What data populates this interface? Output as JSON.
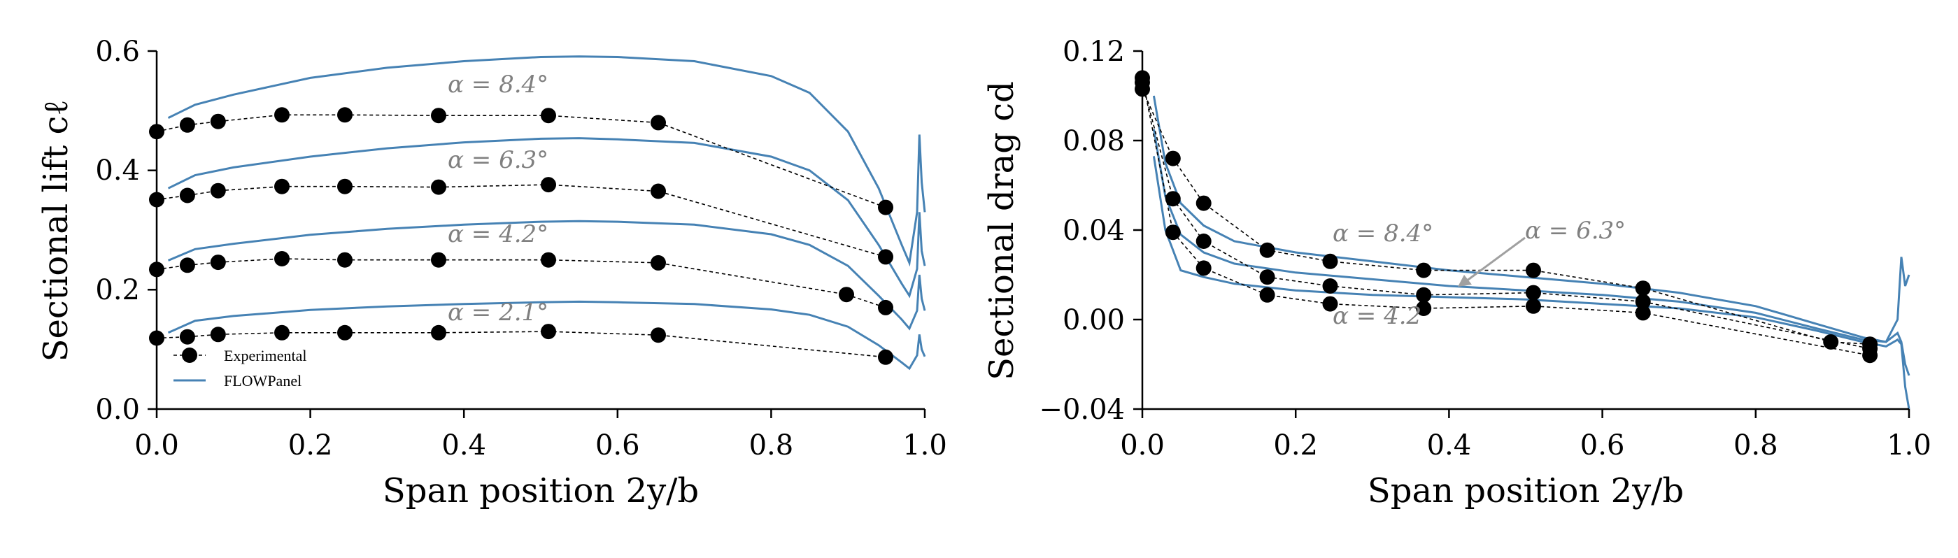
{
  "colors": {
    "experimental": "#000000",
    "flowpanel": "#4682b4",
    "annotation": "#808080",
    "arrow": "#a0a0a0"
  },
  "legend": {
    "experimental": "Experimental",
    "flowpanel": "FLOWPanel"
  },
  "chart_data": [
    {
      "type": "line",
      "xlabel": "Span position 2y/b",
      "ylabel": "Sectional lift cℓ",
      "xlim": [
        0.0,
        1.0
      ],
      "ylim": [
        0.0,
        0.6
      ],
      "xticks": [
        "0.0",
        "0.2",
        "0.4",
        "0.6",
        "0.8",
        "1.0"
      ],
      "yticks": [
        "0.0",
        "0.2",
        "0.4",
        "0.6"
      ],
      "grid": false,
      "legend_position": "lower-left",
      "annotations": [
        "α = 8.4°",
        "α = 6.3°",
        "α = 4.2°",
        "α = 2.1°"
      ],
      "experimental": [
        {
          "alpha": "8.4",
          "x": [
            0.0,
            0.04,
            0.08,
            0.163,
            0.245,
            0.367,
            0.51,
            0.653,
            0.949
          ],
          "y": [
            0.465,
            0.476,
            0.482,
            0.493,
            0.493,
            0.492,
            0.492,
            0.48,
            0.338
          ]
        },
        {
          "alpha": "6.3",
          "x": [
            0.0,
            0.04,
            0.08,
            0.163,
            0.245,
            0.367,
            0.51,
            0.653,
            0.949
          ],
          "y": [
            0.351,
            0.358,
            0.366,
            0.373,
            0.373,
            0.372,
            0.376,
            0.365,
            0.255
          ]
        },
        {
          "alpha": "4.2",
          "x": [
            0.0,
            0.04,
            0.08,
            0.163,
            0.245,
            0.367,
            0.51,
            0.653,
            0.898,
            0.949
          ],
          "y": [
            0.234,
            0.241,
            0.246,
            0.252,
            0.25,
            0.25,
            0.25,
            0.245,
            0.192,
            0.17
          ]
        },
        {
          "alpha": "2.1",
          "x": [
            0.0,
            0.04,
            0.08,
            0.163,
            0.245,
            0.367,
            0.51,
            0.653,
            0.949
          ],
          "y": [
            0.119,
            0.121,
            0.125,
            0.128,
            0.128,
            0.128,
            0.13,
            0.124,
            0.087
          ]
        }
      ],
      "flowpanel": [
        {
          "alpha": "8.4",
          "x": [
            0.015,
            0.05,
            0.1,
            0.2,
            0.3,
            0.4,
            0.5,
            0.55,
            0.6,
            0.7,
            0.8,
            0.85,
            0.9,
            0.94,
            0.97,
            0.98,
            0.99,
            0.993,
            0.996,
            1.0
          ],
          "y": [
            0.488,
            0.51,
            0.527,
            0.555,
            0.572,
            0.583,
            0.59,
            0.591,
            0.59,
            0.583,
            0.558,
            0.53,
            0.465,
            0.37,
            0.275,
            0.245,
            0.33,
            0.46,
            0.38,
            0.33
          ]
        },
        {
          "alpha": "6.3",
          "x": [
            0.015,
            0.05,
            0.1,
            0.2,
            0.3,
            0.4,
            0.5,
            0.55,
            0.6,
            0.7,
            0.8,
            0.85,
            0.9,
            0.94,
            0.97,
            0.98,
            0.99,
            0.993,
            0.996,
            1.0
          ],
          "y": [
            0.37,
            0.392,
            0.405,
            0.423,
            0.437,
            0.447,
            0.453,
            0.454,
            0.452,
            0.446,
            0.423,
            0.4,
            0.35,
            0.275,
            0.21,
            0.19,
            0.235,
            0.33,
            0.265,
            0.24
          ]
        },
        {
          "alpha": "4.2",
          "x": [
            0.015,
            0.05,
            0.1,
            0.2,
            0.3,
            0.4,
            0.5,
            0.55,
            0.6,
            0.7,
            0.8,
            0.85,
            0.9,
            0.94,
            0.97,
            0.98,
            0.99,
            0.993,
            0.996,
            1.0
          ],
          "y": [
            0.249,
            0.268,
            0.277,
            0.292,
            0.302,
            0.309,
            0.314,
            0.315,
            0.314,
            0.309,
            0.293,
            0.275,
            0.24,
            0.19,
            0.15,
            0.135,
            0.165,
            0.225,
            0.185,
            0.165
          ]
        },
        {
          "alpha": "2.1",
          "x": [
            0.015,
            0.05,
            0.1,
            0.2,
            0.3,
            0.4,
            0.5,
            0.55,
            0.6,
            0.7,
            0.8,
            0.85,
            0.9,
            0.94,
            0.97,
            0.98,
            0.99,
            0.993,
            0.996,
            1.0
          ],
          "y": [
            0.128,
            0.148,
            0.156,
            0.166,
            0.172,
            0.176,
            0.179,
            0.18,
            0.179,
            0.176,
            0.167,
            0.158,
            0.138,
            0.107,
            0.078,
            0.068,
            0.09,
            0.125,
            0.1,
            0.088
          ]
        }
      ]
    },
    {
      "type": "line",
      "xlabel": "Span position 2y/b",
      "ylabel": "Sectional drag cd",
      "xlim": [
        0.0,
        1.0
      ],
      "ylim": [
        -0.04,
        0.12
      ],
      "xticks": [
        "0.0",
        "0.2",
        "0.4",
        "0.6",
        "0.8",
        "1.0"
      ],
      "yticks": [
        "−0.04",
        "0.00",
        "0.04",
        "0.08",
        "0.12"
      ],
      "grid": false,
      "annotations": [
        "α = 8.4°",
        "α = 6.3°",
        "α = 4.2"
      ],
      "experimental": [
        {
          "alpha": "8.4",
          "x": [
            0.0,
            0.04,
            0.08,
            0.163,
            0.245,
            0.367,
            0.51,
            0.653,
            0.898,
            0.949
          ],
          "y": [
            0.103,
            0.072,
            0.052,
            0.031,
            0.026,
            0.022,
            0.022,
            0.014,
            -0.01,
            -0.011
          ]
        },
        {
          "alpha": "6.3",
          "x": [
            0.0,
            0.04,
            0.08,
            0.163,
            0.245,
            0.367,
            0.51,
            0.653,
            0.949
          ],
          "y": [
            0.106,
            0.054,
            0.035,
            0.019,
            0.015,
            0.011,
            0.012,
            0.008,
            -0.013
          ]
        },
        {
          "alpha": "4.2",
          "x": [
            0.0,
            0.04,
            0.08,
            0.163,
            0.245,
            0.367,
            0.51,
            0.653,
            0.949
          ],
          "y": [
            0.108,
            0.039,
            0.023,
            0.011,
            0.007,
            0.005,
            0.006,
            0.003,
            -0.016
          ]
        }
      ],
      "flowpanel": [
        {
          "alpha": "8.4",
          "x": [
            0.015,
            0.03,
            0.05,
            0.08,
            0.12,
            0.2,
            0.3,
            0.4,
            0.5,
            0.6,
            0.7,
            0.8,
            0.88,
            0.94,
            0.97,
            0.985,
            0.99,
            0.995,
            1.0
          ],
          "y": [
            0.1,
            0.07,
            0.052,
            0.042,
            0.035,
            0.03,
            0.026,
            0.022,
            0.019,
            0.016,
            0.012,
            0.006,
            -0.002,
            -0.008,
            -0.01,
            0.0,
            0.028,
            0.015,
            0.02
          ]
        },
        {
          "alpha": "6.3",
          "x": [
            0.015,
            0.03,
            0.05,
            0.08,
            0.12,
            0.2,
            0.3,
            0.4,
            0.5,
            0.6,
            0.7,
            0.8,
            0.88,
            0.94,
            0.97,
            0.985,
            0.99,
            0.995,
            1.0
          ],
          "y": [
            0.085,
            0.055,
            0.038,
            0.03,
            0.025,
            0.021,
            0.018,
            0.015,
            0.013,
            0.011,
            0.008,
            0.003,
            -0.004,
            -0.009,
            -0.01,
            -0.006,
            -0.01,
            -0.02,
            -0.025
          ]
        },
        {
          "alpha": "4.2",
          "x": [
            0.015,
            0.03,
            0.05,
            0.08,
            0.12,
            0.2,
            0.3,
            0.4,
            0.5,
            0.6,
            0.7,
            0.8,
            0.88,
            0.94,
            0.97,
            0.985,
            0.99,
            0.995,
            1.0
          ],
          "y": [
            0.073,
            0.04,
            0.022,
            0.019,
            0.016,
            0.013,
            0.011,
            0.01,
            0.009,
            0.007,
            0.005,
            0.001,
            -0.005,
            -0.01,
            -0.012,
            -0.009,
            -0.011,
            -0.03,
            -0.04
          ]
        }
      ]
    }
  ]
}
